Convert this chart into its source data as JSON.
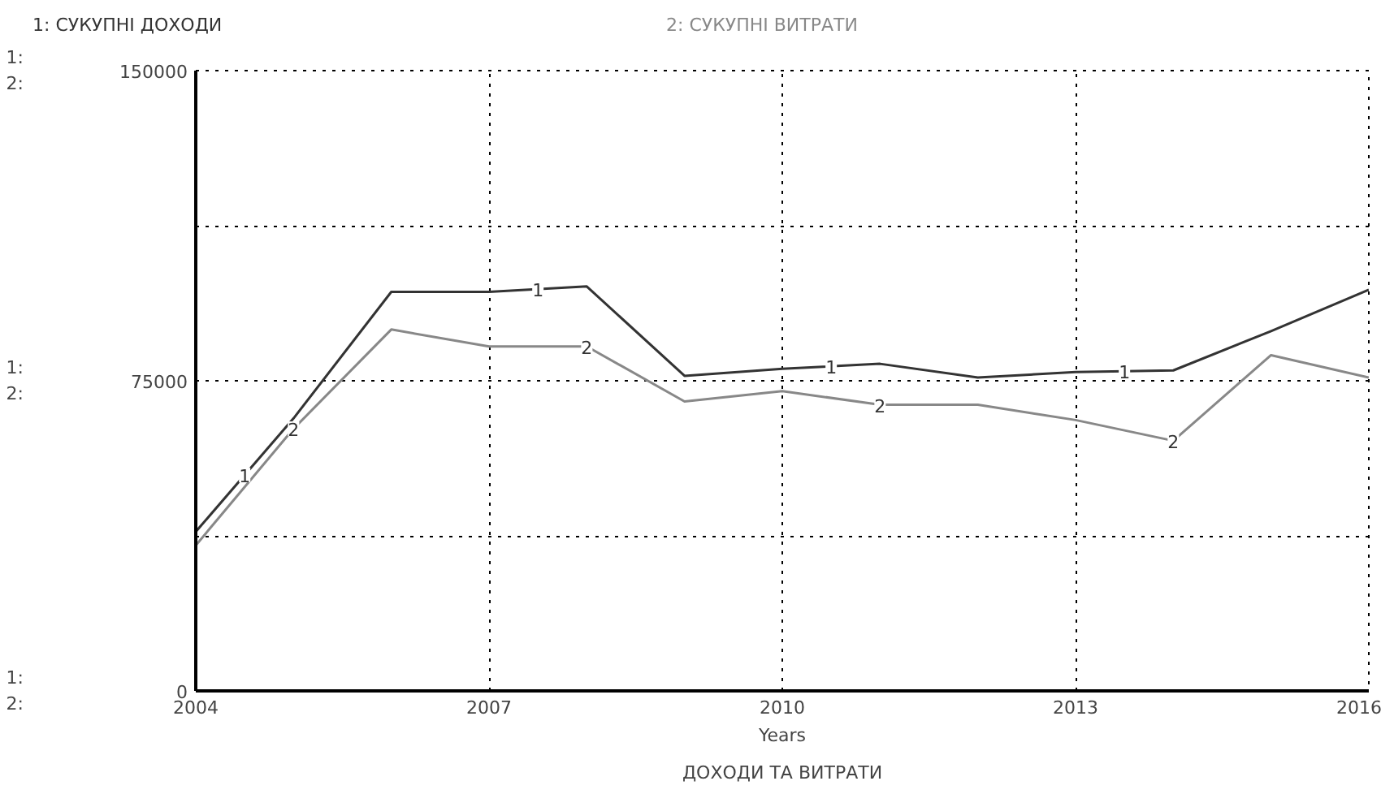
{
  "chart_data": {
    "type": "line",
    "title": "ДОХОДИ ТА ВИТРАТИ",
    "xlabel": "Years",
    "x": [
      2004,
      2005,
      2006,
      2007,
      2008,
      2009,
      2010,
      2011,
      2012,
      2013,
      2014,
      2015,
      2016
    ],
    "xlim": [
      2004,
      2016
    ],
    "xticks": [
      2004,
      2007,
      2010,
      2013,
      2016
    ],
    "ylim": [
      0,
      150000
    ],
    "yticks": [
      0,
      {
        "value": 37500,
        "label": null
      },
      75000,
      {
        "value": 112500,
        "label": null
      },
      150000
    ],
    "grid": true,
    "marker": "none",
    "line_style": "solid",
    "series": [
      {
        "name": "1: СУКУПНІ ДОХОДИ",
        "color": "#333333",
        "values": [
          38500,
          65900,
          96500,
          96500,
          97800,
          76200,
          77900,
          79100,
          75800,
          77100,
          77500,
          87000,
          97000
        ]
      },
      {
        "name": "2: СУКУПНІ ВИТРАТИ",
        "color": "#888888",
        "values": [
          35200,
          63400,
          87400,
          83300,
          83300,
          70000,
          72500,
          69200,
          69200,
          65500,
          60500,
          81200,
          75800
        ]
      }
    ],
    "annotations": [
      "1:\n2:",
      "1:\n2:",
      "1:\n2:",
      {
        "text": "1",
        "x": 2004.5,
        "y": 52200
      },
      {
        "text": "1",
        "x": 2007.5,
        "y": 97150
      },
      {
        "text": "1",
        "x": 2010.5,
        "y": 78500
      },
      {
        "text": "1",
        "x": 2013.5,
        "y": 77300
      },
      {
        "text": "2",
        "x": 2005,
        "y": 63400
      },
      {
        "text": "2",
        "x": 2008,
        "y": 83300
      },
      {
        "text": "2",
        "x": 2011,
        "y": 69200
      },
      {
        "text": "2",
        "x": 2014,
        "y": 60500
      }
    ]
  }
}
